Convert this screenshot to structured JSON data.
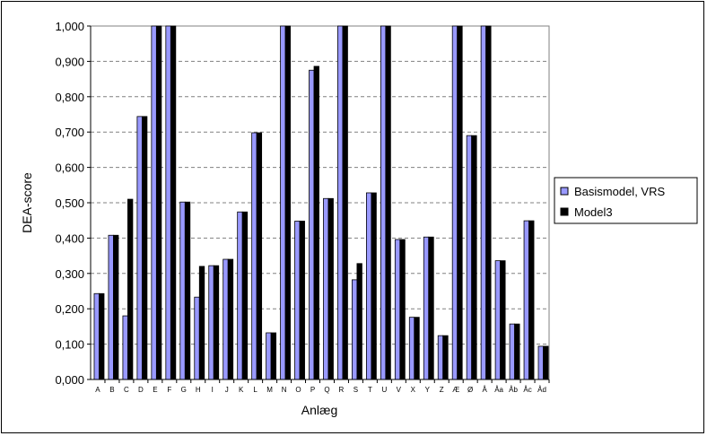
{
  "colors": {
    "series1": "#9999ff",
    "series2": "#000000",
    "grid": "#808080",
    "plot_bg": "#ffffff"
  },
  "chart_data": {
    "type": "bar",
    "xlabel": "Anlæg",
    "ylabel": "DEA-score",
    "ylim": [
      0,
      1
    ],
    "yticks": [
      "0,000",
      "0,100",
      "0,200",
      "0,300",
      "0,400",
      "0,500",
      "0,600",
      "0,700",
      "0,800",
      "0,900",
      "1,000"
    ],
    "grid": true,
    "legend_position": "right",
    "categories": [
      "A",
      "B",
      "C",
      "D",
      "E",
      "F",
      "G",
      "H",
      "I",
      "J",
      "K",
      "L",
      "M",
      "N",
      "O",
      "P",
      "Q",
      "R",
      "S",
      "T",
      "U",
      "V",
      "X",
      "Y",
      "Z",
      "Æ",
      "Ø",
      "Å",
      "Åa",
      "Åb",
      "Åc",
      "Åd"
    ],
    "series": [
      {
        "name": "Basismodel, VRS",
        "values": [
          0.243,
          0.408,
          0.18,
          0.744,
          1.0,
          1.0,
          0.502,
          0.233,
          0.322,
          0.34,
          0.474,
          0.698,
          0.132,
          1.0,
          0.448,
          0.875,
          0.512,
          1.0,
          0.282,
          0.528,
          1.0,
          0.396,
          0.176,
          0.403,
          0.124,
          1.0,
          0.69,
          1.0,
          0.336,
          0.157,
          0.449,
          0.094
        ]
      },
      {
        "name": "Model3",
        "values": [
          0.243,
          0.408,
          0.51,
          0.744,
          1.0,
          1.0,
          0.502,
          0.32,
          0.322,
          0.34,
          0.474,
          0.698,
          0.132,
          1.0,
          0.448,
          0.886,
          0.512,
          1.0,
          0.328,
          0.528,
          1.0,
          0.396,
          0.176,
          0.403,
          0.124,
          1.0,
          0.69,
          1.0,
          0.336,
          0.157,
          0.449,
          0.094
        ]
      }
    ]
  }
}
